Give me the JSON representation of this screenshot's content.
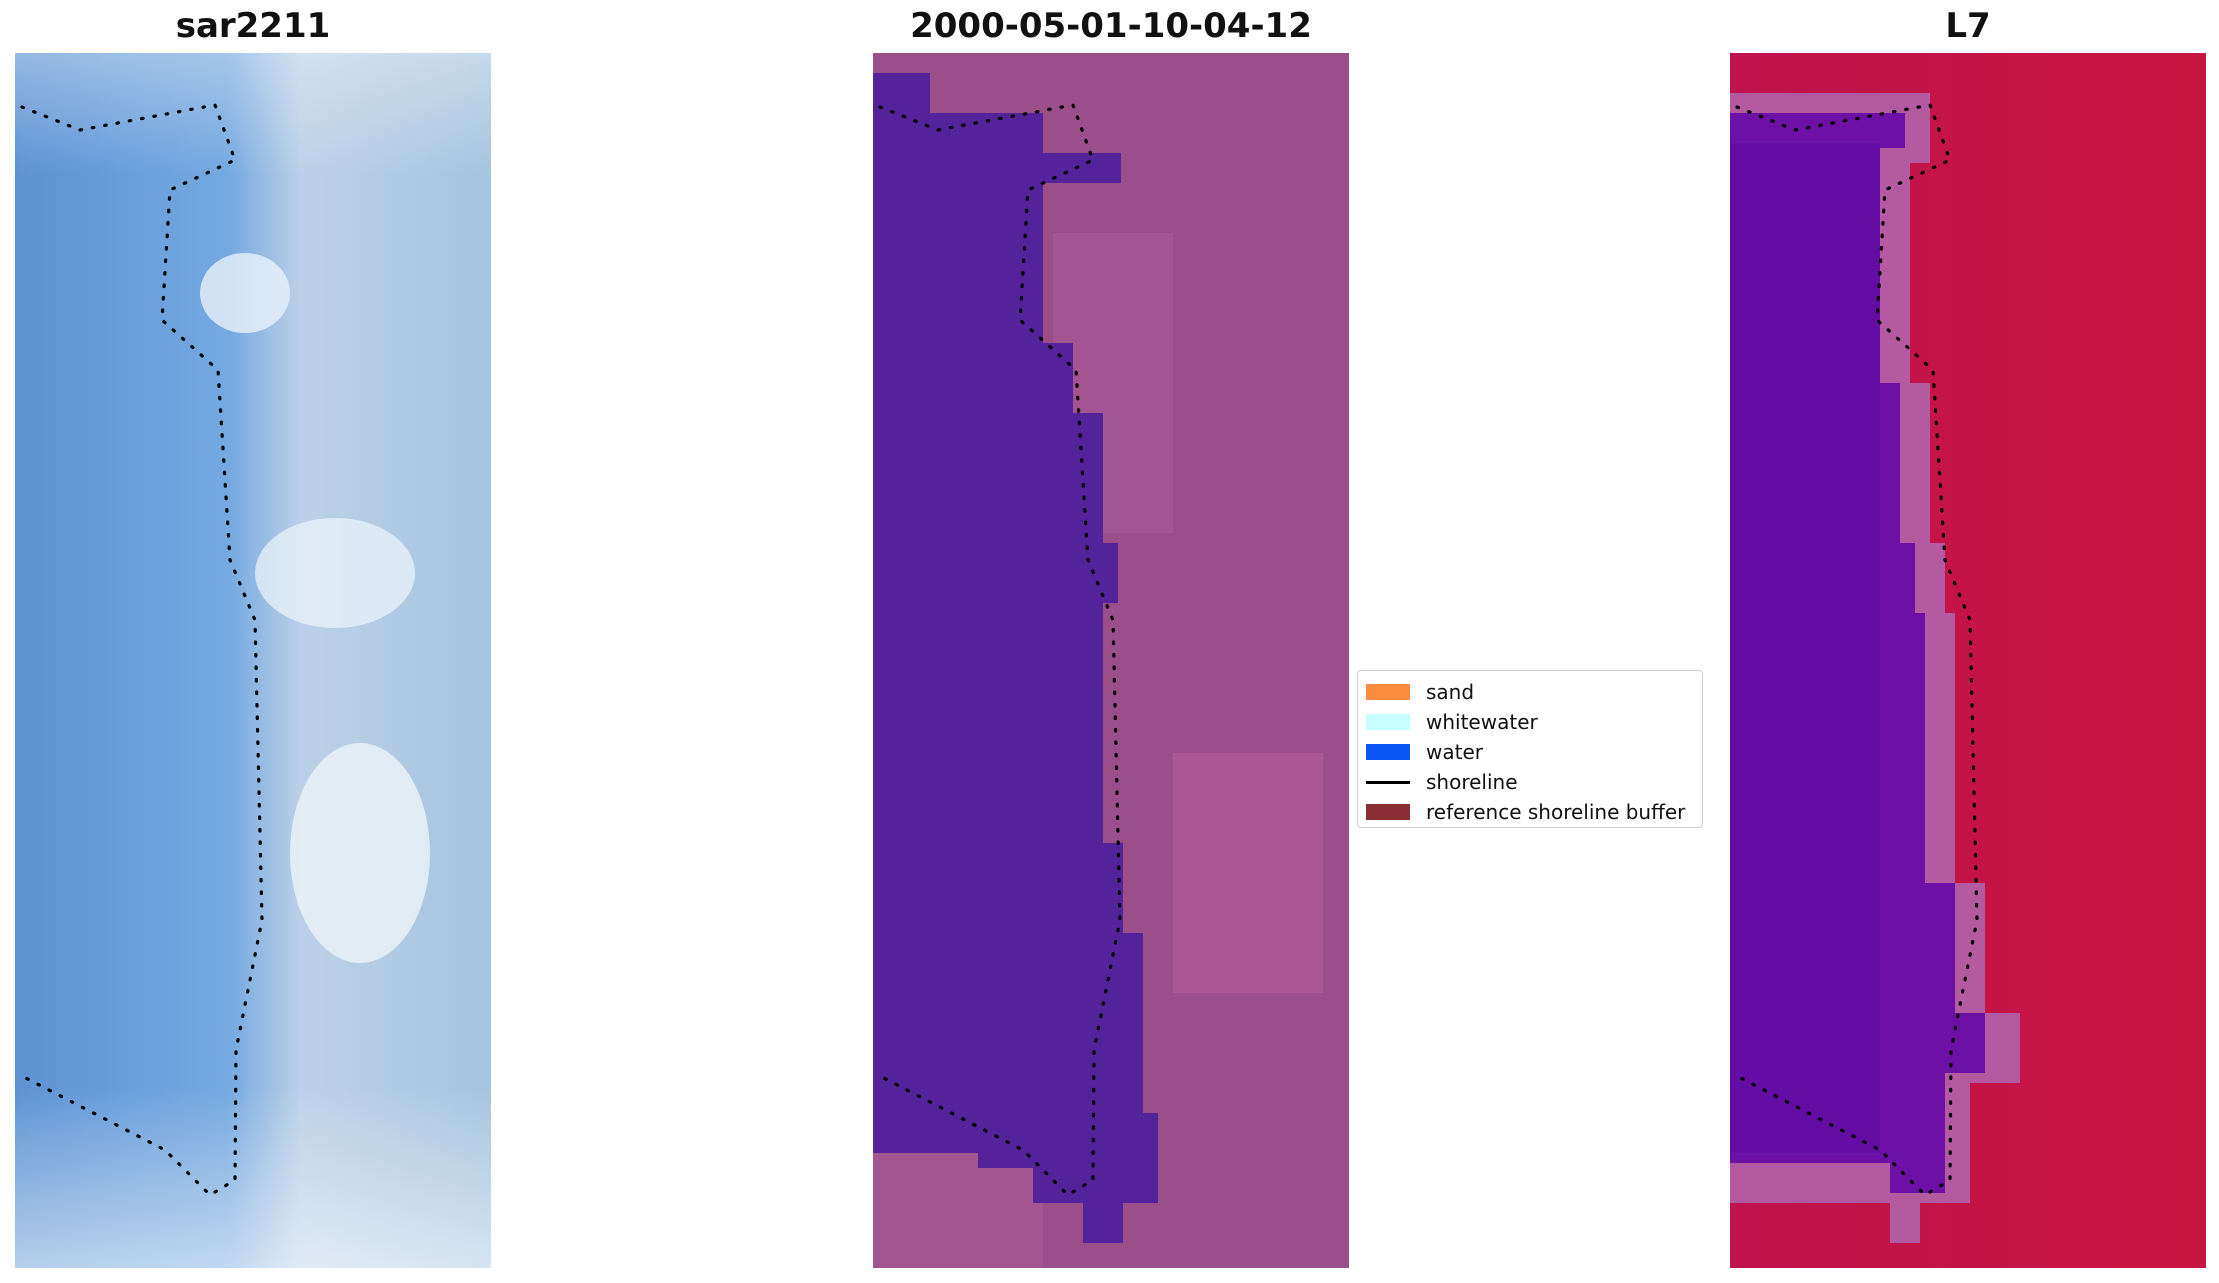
{
  "panels": [
    {
      "title": "sar2211",
      "kind": "rgb-image"
    },
    {
      "title": "2000-05-01-10-04-12",
      "kind": "classified-image"
    },
    {
      "title": "L7",
      "kind": "index-image"
    }
  ],
  "legend": {
    "items": [
      {
        "label": "sand",
        "color": "#f98b3f",
        "type": "patch"
      },
      {
        "label": "whitewater",
        "color": "#c6fffd",
        "type": "patch"
      },
      {
        "label": "water",
        "color": "#0a56f2",
        "type": "patch"
      },
      {
        "label": "shoreline",
        "color": "#000000",
        "type": "line"
      },
      {
        "label": "reference shoreline buffer",
        "color": "#8b2c35",
        "type": "patch"
      }
    ]
  },
  "colors": {
    "rgb_water": "#5a95d6",
    "rgb_land": "#a8c4e0",
    "class_water": "#54229a",
    "class_land": "#9a4f8a",
    "index_water": "#6c10a6",
    "index_land": "#c2183f",
    "index_buffer": "#b45aa0"
  }
}
